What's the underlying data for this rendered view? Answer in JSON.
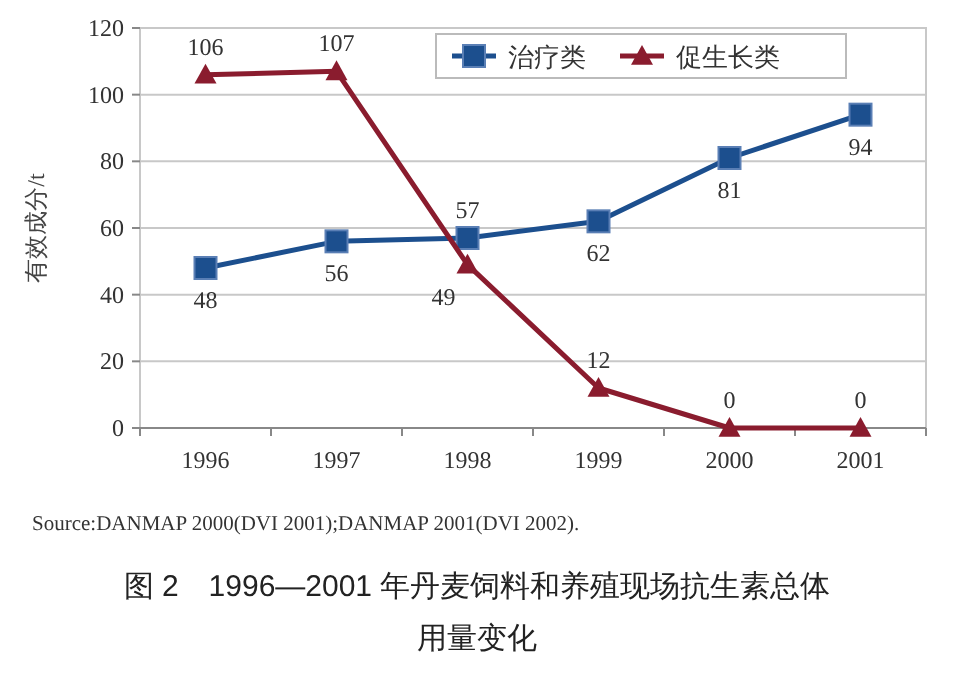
{
  "chart_data": {
    "type": "line",
    "title": "图 2　1996—2001 年丹麦饲料和养殖现场抗生素总体用量变化",
    "ylabel": "有效成分/t",
    "categories": [
      "1996",
      "1997",
      "1998",
      "1999",
      "2000",
      "2001"
    ],
    "series": [
      {
        "name": "治疗类",
        "color": "#1c4f8e",
        "marker": "square",
        "values": [
          48,
          56,
          57,
          62,
          81,
          94
        ]
      },
      {
        "name": "促生长类",
        "color": "#8a1c2e",
        "marker": "triangle",
        "values": [
          106,
          107,
          49,
          12,
          0,
          0
        ]
      }
    ],
    "ylim": [
      0,
      120
    ],
    "yticks": [
      0,
      20,
      40,
      60,
      80,
      100,
      120
    ],
    "grid": "y",
    "legend": "top right",
    "data_labels": true,
    "annotations": [
      "Source:DANMAP 2000(DVI 2001);DANMAP 2001(DVI 2002)."
    ]
  }
}
